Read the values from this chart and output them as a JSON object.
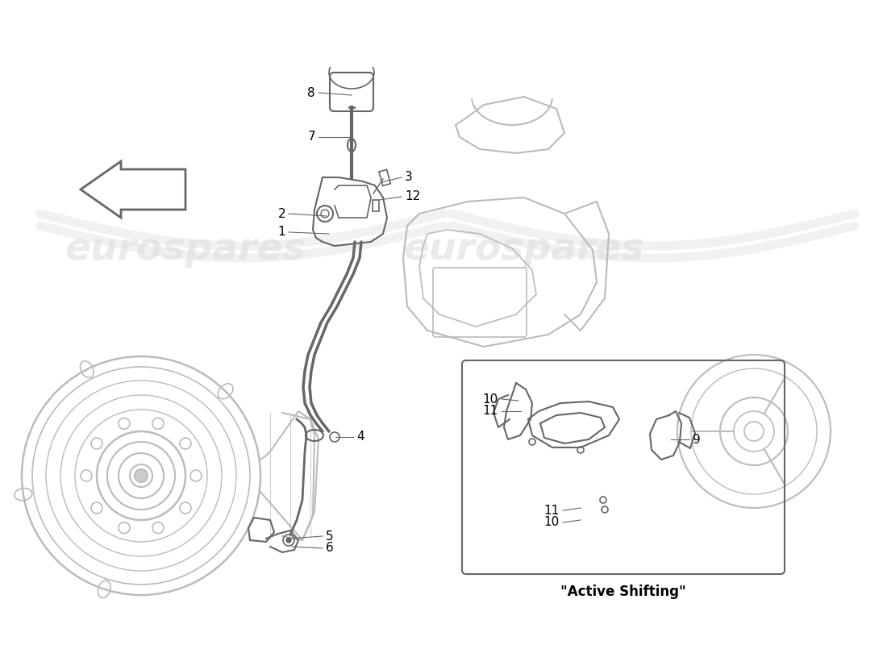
{
  "background_color": "#ffffff",
  "lc": "#666666",
  "llc": "#bbbbbb",
  "wm_color": "#dddddd",
  "wm_text": "eurospares",
  "active_shifting_label": "\"Active Shifting\"",
  "figsize": [
    11.0,
    8.0
  ],
  "dpi": 100
}
